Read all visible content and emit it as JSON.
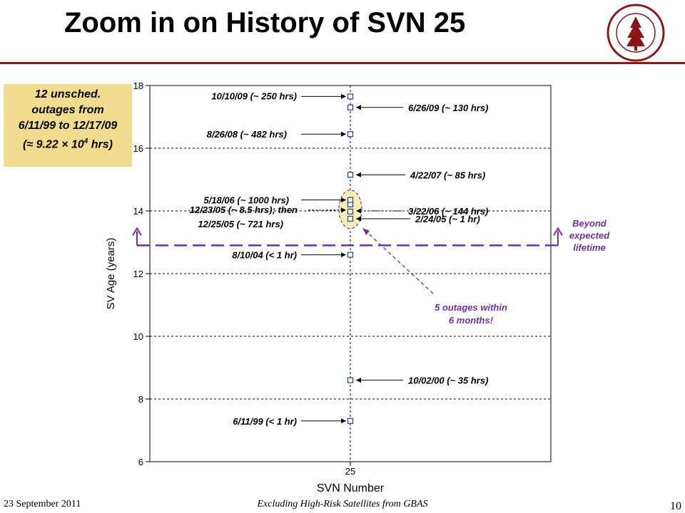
{
  "slide": {
    "title": "Zoom in on History of SVN 25",
    "footer_date": "23 September 2011",
    "footer_center": "Excluding High-Risk Satellites from GBAS",
    "page_number": "10"
  },
  "callout": {
    "line1": "12 unsched.",
    "line2": "outages from",
    "line3": "6/11/99 to 12/17/09",
    "line4_prefix": "(≈ 9.22 × 10",
    "line4_sup": "4",
    "line4_suffix": " hrs)"
  },
  "colors": {
    "marker": "#1f3a93",
    "accent": "#7030a0",
    "callout_bg": "#f2dd8e",
    "highlight": "#f5f0b0",
    "brand": "#8c1515"
  },
  "chart_data": {
    "type": "scatter",
    "title": "",
    "xlabel": "SVN Number",
    "ylabel": "SV Age (years)",
    "ylim": [
      6,
      18
    ],
    "yticks": [
      "6",
      "8",
      "10",
      "12",
      "14",
      "16",
      "18"
    ],
    "categories": [
      "25"
    ],
    "grid": "horizontal dashed",
    "series": [
      {
        "x": "25",
        "values": [
          7.3,
          8.6,
          12.6,
          13.75,
          13.98,
          14.21,
          14.35,
          15.15,
          16.45,
          17.3,
          17.65
        ]
      }
    ],
    "expected_lifetime_line": 12.9,
    "annotations": [
      {
        "text": "10/10/09 (~ 250 hrs)",
        "y": 17.65,
        "side": "left"
      },
      {
        "text": "6/26/09 (~ 130 hrs)",
        "y": 17.3,
        "side": "right"
      },
      {
        "text": "8/26/08 (~ 482 hrs)",
        "y": 16.45,
        "side": "left"
      },
      {
        "text": "4/22/07 (~ 85 hrs)",
        "y": 15.15,
        "side": "right"
      },
      {
        "text": "5/18/06 (~ 1000 hrs)",
        "y": 14.35,
        "side": "left"
      },
      {
        "text": "3/22/06 (~ 144 hrs)",
        "y": 14.0,
        "side": "right"
      },
      {
        "text": "12/23/05 (~ 8.5 hrs); then",
        "y": 13.98,
        "side": "left"
      },
      {
        "text": "12/25/05 (~ 721 hrs)",
        "y": 13.98,
        "side": "left"
      },
      {
        "text": "2/24/05 (~ 1 hr)",
        "y": 13.75,
        "side": "right"
      },
      {
        "text": "8/10/04 (< 1 hr)",
        "y": 12.6,
        "side": "left"
      },
      {
        "text": "10/02/00 (~ 35 hrs)",
        "y": 8.6,
        "side": "right"
      },
      {
        "text": "6/11/99 (< 1 hr)",
        "y": 7.3,
        "side": "left"
      }
    ],
    "notes": {
      "beyond": [
        "Beyond",
        "expected",
        "lifetime"
      ],
      "cluster": [
        "5 outages within",
        "6 months!"
      ]
    }
  }
}
